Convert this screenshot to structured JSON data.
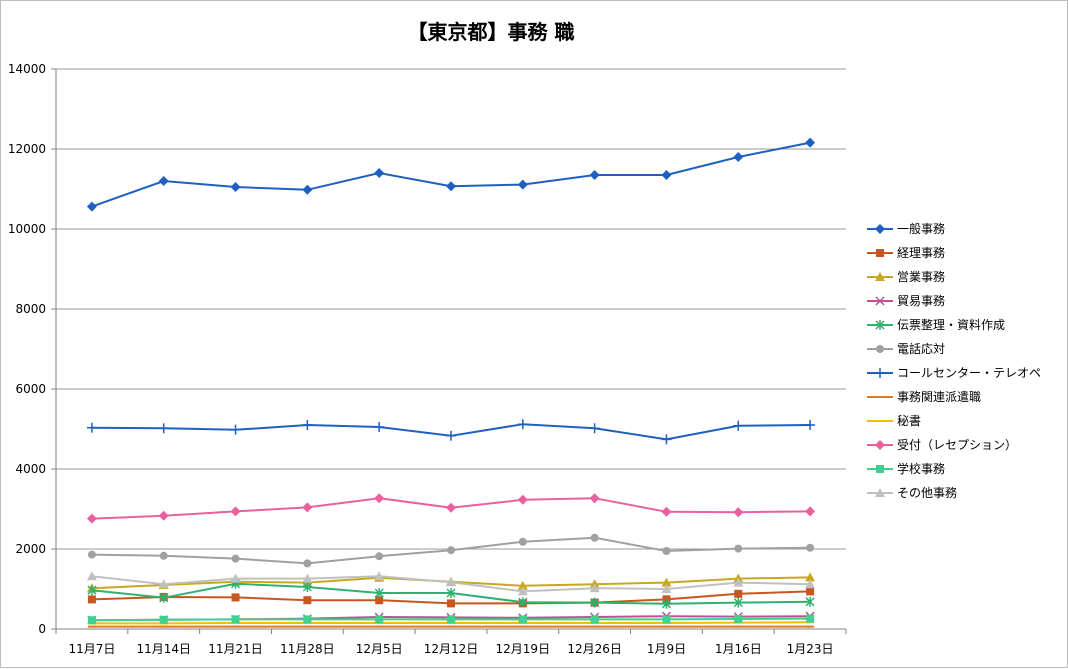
{
  "chart_data": {
    "type": "line",
    "title": "【東京都】事務 職",
    "xlabel": "",
    "ylabel": "",
    "ylim": [
      0,
      14000
    ],
    "yticks": [
      0,
      2000,
      4000,
      6000,
      8000,
      10000,
      12000,
      14000
    ],
    "grid": true,
    "legend_position": "right",
    "categories": [
      "11月7日",
      "11月14日",
      "11月21日",
      "11月28日",
      "12月5日",
      "12月12日",
      "12月19日",
      "12月26日",
      "1月9日",
      "1月16日",
      "1月23日"
    ],
    "series": [
      {
        "name": "一般事務",
        "color": "#1f5fbf",
        "marker": "diamond",
        "values": [
          10560,
          11200,
          11050,
          10980,
          11400,
          11070,
          11110,
          11350,
          11350,
          11800,
          12160
        ]
      },
      {
        "name": "経理事務",
        "color": "#c8561e",
        "marker": "square",
        "values": [
          740,
          800,
          790,
          720,
          720,
          640,
          640,
          660,
          740,
          880,
          940
        ]
      },
      {
        "name": "営業事務",
        "color": "#c8a81e",
        "marker": "triangle",
        "values": [
          1020,
          1100,
          1180,
          1160,
          1280,
          1180,
          1080,
          1120,
          1160,
          1260,
          1290
        ]
      },
      {
        "name": "貿易事務",
        "color": "#c05090",
        "marker": "x",
        "values": [
          220,
          230,
          240,
          260,
          300,
          290,
          280,
          300,
          320,
          310,
          320
        ]
      },
      {
        "name": "伝票整理・資料作成",
        "color": "#30b070",
        "marker": "asterisk",
        "values": [
          970,
          780,
          1130,
          1050,
          900,
          900,
          670,
          660,
          630,
          660,
          680
        ]
      },
      {
        "name": "電話応対",
        "color": "#a0a0a0",
        "marker": "circle",
        "values": [
          1860,
          1830,
          1760,
          1640,
          1820,
          1970,
          2180,
          2280,
          1950,
          2010,
          2030
        ]
      },
      {
        "name": "コールセンター・テレオペ",
        "color": "#1f5fbf",
        "marker": "plus",
        "values": [
          5030,
          5020,
          4980,
          5100,
          5050,
          4830,
          5120,
          5020,
          4740,
          5080,
          5100
        ]
      },
      {
        "name": "事務関連派遣職",
        "color": "#e07a1a",
        "marker": "dash",
        "values": [
          60,
          60,
          60,
          60,
          60,
          60,
          60,
          60,
          60,
          60,
          60
        ]
      },
      {
        "name": "秘書",
        "color": "#f0c000",
        "marker": "dash",
        "values": [
          140,
          140,
          150,
          150,
          150,
          150,
          150,
          150,
          150,
          160,
          170
        ]
      },
      {
        "name": "受付（レセプション）",
        "color": "#e860a0",
        "marker": "diamond",
        "values": [
          2760,
          2830,
          2940,
          3040,
          3270,
          3030,
          3230,
          3270,
          2930,
          2920,
          2940
        ]
      },
      {
        "name": "学校事務",
        "color": "#40d090",
        "marker": "square",
        "values": [
          220,
          230,
          240,
          240,
          240,
          240,
          240,
          240,
          240,
          250,
          260
        ]
      },
      {
        "name": "その他事務",
        "color": "#c0c0c0",
        "marker": "triangle",
        "values": [
          1320,
          1120,
          1260,
          1260,
          1320,
          1170,
          940,
          1020,
          1000,
          1160,
          1120
        ]
      }
    ]
  }
}
